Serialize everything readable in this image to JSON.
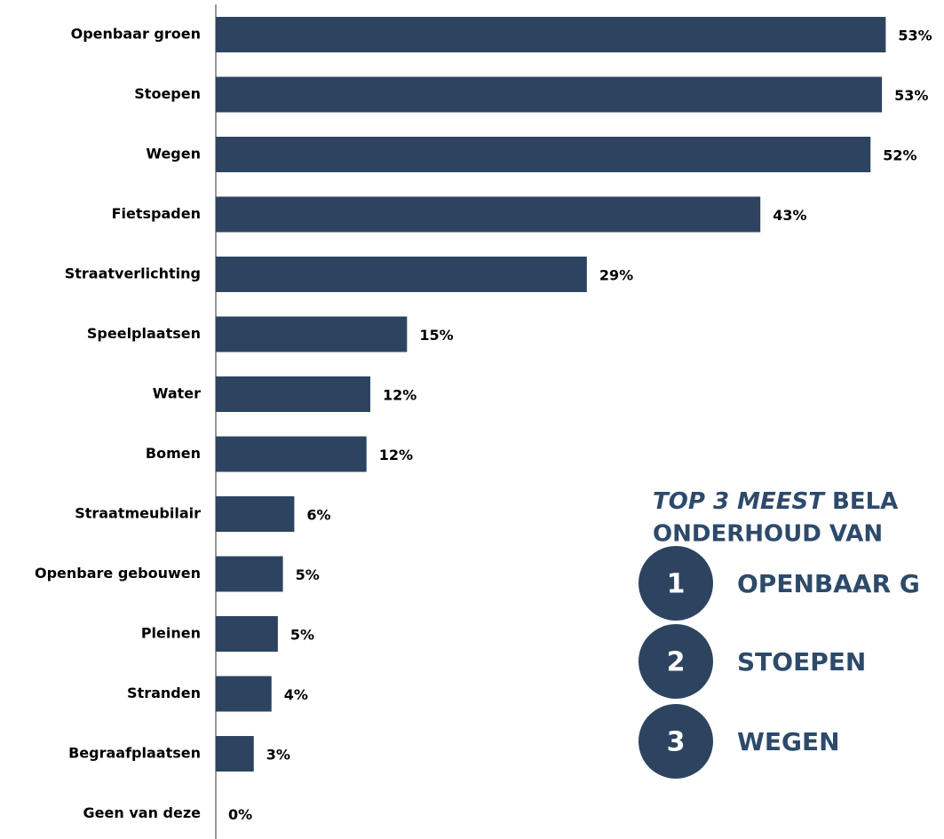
{
  "chart_data": {
    "type": "bar",
    "orientation": "horizontal",
    "categories": [
      "Openbaar groen",
      "Stoepen",
      "Wegen",
      "Fietspaden",
      "Straatverlichting",
      "Speelplaatsen",
      "Water",
      "Bomen",
      "Straatmeubilair",
      "Openbare gebouwen",
      "Pleinen",
      "Stranden",
      "Begraafplaatsen",
      "Geen van deze"
    ],
    "values": [
      52.9,
      52.6,
      51.7,
      43.0,
      29.3,
      15.1,
      12.2,
      11.9,
      6.2,
      5.3,
      4.9,
      4.4,
      3.0,
      0
    ],
    "value_labels": [
      "53%",
      "53%",
      "52%",
      "43%",
      "29%",
      "15%",
      "12%",
      "12%",
      "6%",
      "5%",
      "5%",
      "4%",
      "3%",
      "0%"
    ],
    "color": "#2d4461",
    "xlim": [
      0,
      57.5
    ]
  },
  "inset": {
    "title_italic": "TOP 3 MEEST",
    "title_rest": "BELA",
    "title_line2": "ONDERHOUD VAN",
    "ranking": [
      {
        "rank": "1",
        "label": "OPENBAAR G"
      },
      {
        "rank": "2",
        "label": "STOEPEN"
      },
      {
        "rank": "3",
        "label": "WEGEN"
      }
    ]
  }
}
